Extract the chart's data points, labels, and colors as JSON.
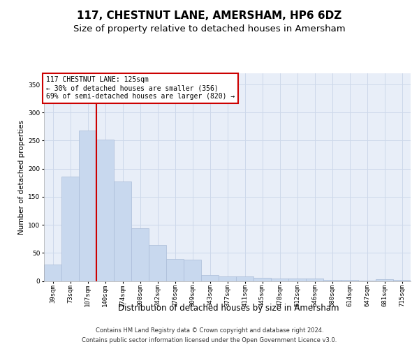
{
  "title": "117, CHESTNUT LANE, AMERSHAM, HP6 6DZ",
  "subtitle": "Size of property relative to detached houses in Amersham",
  "xlabel": "Distribution of detached houses by size in Amersham",
  "ylabel": "Number of detached properties",
  "categories": [
    "39sqm",
    "73sqm",
    "107sqm",
    "140sqm",
    "174sqm",
    "208sqm",
    "242sqm",
    "276sqm",
    "309sqm",
    "343sqm",
    "377sqm",
    "411sqm",
    "445sqm",
    "478sqm",
    "512sqm",
    "546sqm",
    "580sqm",
    "614sqm",
    "647sqm",
    "681sqm",
    "715sqm"
  ],
  "values": [
    29,
    186,
    268,
    252,
    177,
    94,
    64,
    39,
    38,
    11,
    8,
    8,
    6,
    4,
    4,
    4,
    2,
    2,
    1,
    3,
    2
  ],
  "bar_color": "#c8d8ee",
  "bar_edge_color": "#aabcd8",
  "vline_color": "#cc0000",
  "annotation_text": "117 CHESTNUT LANE: 125sqm\n← 30% of detached houses are smaller (356)\n69% of semi-detached houses are larger (820) →",
  "annotation_box_color": "#ffffff",
  "annotation_box_edge_color": "#cc0000",
  "ylim": [
    0,
    370
  ],
  "yticks": [
    0,
    50,
    100,
    150,
    200,
    250,
    300,
    350
  ],
  "grid_color": "#cdd8ea",
  "background_color": "#e8eef8",
  "footer_line1": "Contains HM Land Registry data © Crown copyright and database right 2024.",
  "footer_line2": "Contains public sector information licensed under the Open Government Licence v3.0.",
  "title_fontsize": 11,
  "subtitle_fontsize": 9.5,
  "xlabel_fontsize": 8.5,
  "ylabel_fontsize": 7.5,
  "tick_fontsize": 6.5,
  "annotation_fontsize": 7,
  "footer_fontsize": 6
}
